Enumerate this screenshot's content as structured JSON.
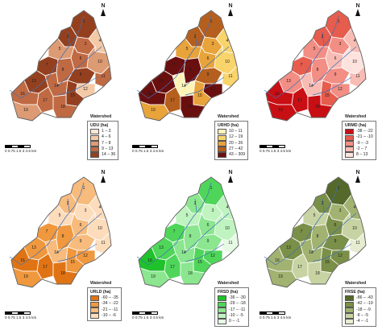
{
  "legend_heading": "Watershed",
  "scale": {
    "ticks": "0 0.75 1.5     3     4.5",
    "unit": "km"
  },
  "north_label": "N",
  "panels": [
    {
      "legend_title": "UDU (ha)",
      "classes": [
        {
          "label": "1 – 3",
          "color": "#fde8d4"
        },
        {
          "label": "4 – 6",
          "color": "#f3c9a6"
        },
        {
          "label": "7 – 8",
          "color": "#dd9b73"
        },
        {
          "label": "9 – 13",
          "color": "#c06a43"
        },
        {
          "label": "14 – 36",
          "color": "#94401f"
        }
      ],
      "subwatershed_class": [
        4,
        4,
        3,
        1,
        2,
        3,
        4,
        3,
        4,
        2,
        3,
        1,
        4,
        3,
        4,
        3,
        3,
        3,
        2
      ]
    },
    {
      "legend_title": "URHD (ha)",
      "classes": [
        {
          "label": "10 – 11",
          "color": "#fff3b8"
        },
        {
          "label": "12 – 19",
          "color": "#f9d46b"
        },
        {
          "label": "20 – 26",
          "color": "#e8a33a"
        },
        {
          "label": "27 – 42",
          "color": "#b55f1e"
        },
        {
          "label": "43 – 309",
          "color": "#6a0f0f"
        }
      ],
      "subwatershed_class": [
        3,
        3,
        2,
        1,
        2,
        2,
        4,
        4,
        3,
        1,
        1,
        4,
        4,
        0,
        2,
        4,
        3,
        4,
        2
      ]
    },
    {
      "legend_title": "URMD (ha)",
      "classes": [
        {
          "label": "-38 – -22",
          "color": "#c80f14"
        },
        {
          "label": "-21 – -10",
          "color": "#e65c4d"
        },
        {
          "label": "-9 – -3",
          "color": "#f28e84"
        },
        {
          "label": "-2 – 7",
          "color": "#f8bcb4"
        },
        {
          "label": "8 – 13",
          "color": "#fde2dd"
        }
      ],
      "subwatershed_class": [
        1,
        1,
        2,
        3,
        2,
        3,
        1,
        2,
        2,
        4,
        3,
        2,
        2,
        3,
        1,
        0,
        0,
        0,
        0
      ]
    },
    {
      "legend_title": "URLD (ha)",
      "classes": [
        {
          "label": "-60 – -35",
          "color": "#e07415"
        },
        {
          "label": "-34 – -22",
          "color": "#f0983e"
        },
        {
          "label": "-21 – -11",
          "color": "#f7bb7d"
        },
        {
          "label": "-10 – -6",
          "color": "#fcdcbb"
        }
      ],
      "subwatershed_class": [
        2,
        2,
        3,
        3,
        3,
        2,
        1,
        1,
        2,
        3,
        3,
        1,
        1,
        2,
        1,
        0,
        0,
        0,
        1
      ]
    },
    {
      "legend_title": "FRSD (ha)",
      "classes": [
        {
          "label": "-36 – -30",
          "color": "#1fc22a"
        },
        {
          "label": "-29 – -18",
          "color": "#4fd65a"
        },
        {
          "label": "-17 – -11",
          "color": "#8be68f"
        },
        {
          "label": "-10 – -5",
          "color": "#bff3bf"
        },
        {
          "label": "0 – -1",
          "color": "#e6fbe4"
        }
      ],
      "subwatershed_class": [
        1,
        2,
        3,
        3,
        3,
        2,
        1,
        2,
        2,
        3,
        4,
        1,
        1,
        2,
        1,
        0,
        1,
        2,
        2
      ]
    },
    {
      "legend_title": "FRSE (ha)",
      "classes": [
        {
          "label": "-86 – -43",
          "color": "#55692a"
        },
        {
          "label": "-42 – -19",
          "color": "#7a8f48"
        },
        {
          "label": "-18 – -9",
          "color": "#a1b271"
        },
        {
          "label": "-8 – -5",
          "color": "#c7d3a2"
        },
        {
          "label": "-4 – -1",
          "color": "#e6eccf"
        }
      ],
      "subwatershed_class": [
        0,
        1,
        2,
        2,
        3,
        1,
        1,
        2,
        1,
        3,
        4,
        1,
        1,
        2,
        1,
        2,
        3,
        3,
        2
      ]
    }
  ],
  "subwatershed_labels": [
    "1",
    "2",
    "3",
    "4",
    "5",
    "6",
    "7",
    "8",
    "9",
    "10",
    "11",
    "12",
    "13",
    "14",
    "15",
    "16",
    "17",
    "18",
    "19"
  ]
}
